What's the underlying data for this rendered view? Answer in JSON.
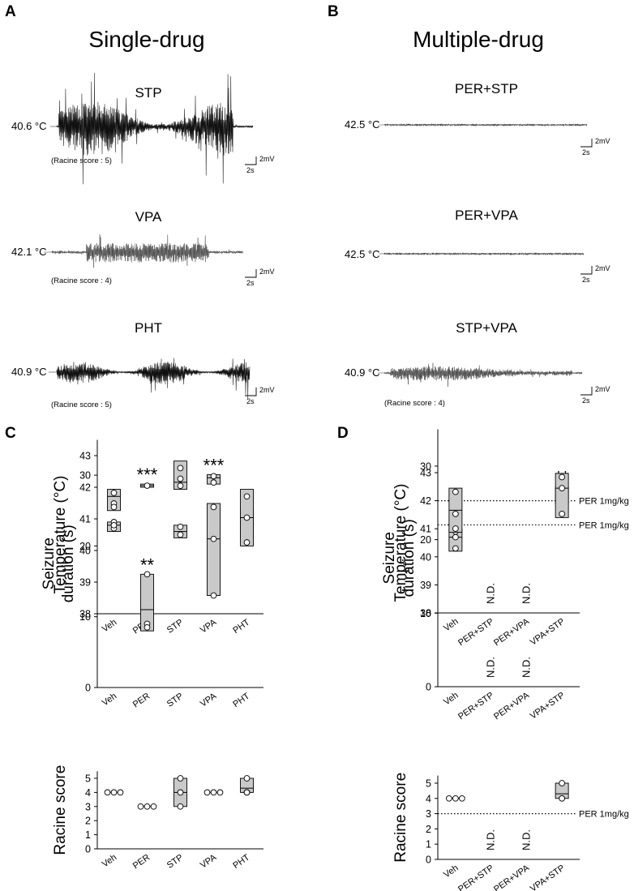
{
  "panels": {
    "A": {
      "letter": "A",
      "heading": "Single-drug",
      "traces": [
        {
          "label": "STP",
          "temp": "40.6 °C",
          "score": "(Racine score : 5)",
          "scale_time": "2s",
          "scale_amp": "2mV"
        },
        {
          "label": "VPA",
          "temp": "42.1 °C",
          "score": "(Racine score : 4)",
          "scale_time": "2s",
          "scale_amp": "2mV"
        },
        {
          "label": "PHT",
          "temp": "40.9 °C",
          "score": "(Racine score : 5)",
          "scale_time": "2s",
          "scale_amp": "2mV"
        }
      ]
    },
    "B": {
      "letter": "B",
      "heading": "Multiple-drug",
      "traces": [
        {
          "label": "PER+STP",
          "temp": "42.5 °C",
          "score": "",
          "scale_time": "2s",
          "scale_amp": "2mV"
        },
        {
          "label": "PER+VPA",
          "temp": "42.5 °C",
          "score": "",
          "scale_time": "2s",
          "scale_amp": "2mV"
        },
        {
          "label": "STP+VPA",
          "temp": "40.9 °C",
          "score": "(Racine score : 4)",
          "scale_time": "2s",
          "scale_amp": "2mV"
        }
      ]
    },
    "C": {
      "letter": "C"
    },
    "D": {
      "letter": "D"
    }
  },
  "chart_data": [
    {
      "id": "C-temp",
      "type": "box",
      "panel": "C",
      "ylabel": [
        "Temperature (°C)"
      ],
      "ylim": [
        38,
        43
      ],
      "yticks": [
        38,
        39,
        40,
        41,
        42,
        43
      ],
      "categories": [
        "Veh",
        "PER",
        "STP",
        "VPA",
        "PHT"
      ],
      "groups": [
        {
          "min": 40.6,
          "q1": 40.6,
          "median": 40.8,
          "q3": 40.9,
          "max": 40.9,
          "points": [
            40.9,
            40.7,
            40.8
          ],
          "sig": ""
        },
        {
          "min": 42.0,
          "q1": 42.0,
          "median": 42.05,
          "q3": 42.1,
          "max": 42.1,
          "points": [
            42.05
          ],
          "sig": "***"
        },
        {
          "min": 40.4,
          "q1": 40.4,
          "median": 40.6,
          "q3": 40.8,
          "max": 40.8,
          "points": [
            40.75,
            40.5
          ],
          "sig": ""
        },
        {
          "min": 42.1,
          "q1": 42.1,
          "median": 42.3,
          "q3": 42.4,
          "max": 42.4,
          "points": [
            42.35,
            42.15
          ],
          "sig": "***"
        },
        {
          "min": 40.4,
          "q1": 40.4,
          "median": 40.9,
          "q3": 41.3,
          "max": 41.3,
          "points": [
            41.2,
            40.9,
            40.5
          ],
          "sig": ""
        }
      ],
      "nd_label": "",
      "reference": null
    },
    {
      "id": "C-dur",
      "type": "box",
      "panel": "C",
      "ylabel": [
        "Seizure",
        "duration (s)"
      ],
      "ylim": [
        0,
        35
      ],
      "yticks": [
        0,
        10,
        20,
        30
      ],
      "categories": [
        "Veh",
        "PER",
        "STP",
        "VPA",
        "PHT"
      ],
      "groups": [
        {
          "min": 25,
          "q1": 25,
          "median": 27,
          "q3": 28,
          "max": 28,
          "points": [
            27.5,
            26,
            25.5
          ],
          "sig": ""
        },
        {
          "min": 8,
          "q1": 8,
          "median": 11,
          "q3": 16,
          "max": 16,
          "points": [
            16,
            9,
            8.5
          ],
          "sig": "**"
        },
        {
          "min": 28,
          "q1": 28,
          "median": 29,
          "q3": 32,
          "max": 32,
          "points": [
            31,
            29.5,
            28.5
          ],
          "sig": ""
        },
        {
          "min": 13,
          "q1": 13,
          "median": 21,
          "q3": 26,
          "max": 26,
          "points": [
            25.5,
            21,
            13
          ],
          "sig": ""
        },
        {
          "min": 20,
          "q1": 20,
          "median": 24,
          "q3": 28,
          "max": 28,
          "points": [
            27,
            24,
            20.5
          ],
          "sig": ""
        }
      ],
      "nd_label": "",
      "reference": null
    },
    {
      "id": "C-score",
      "type": "box",
      "panel": "C",
      "ylabel": [
        "Racine score"
      ],
      "ylim": [
        0,
        5.5
      ],
      "yticks": [
        0,
        1,
        2,
        3,
        4,
        5
      ],
      "categories": [
        "Veh",
        "PER",
        "STP",
        "VPA",
        "PHT"
      ],
      "groups": [
        {
          "min": 4,
          "q1": 4,
          "median": 4,
          "q3": 4,
          "max": 4,
          "points": [
            4,
            4,
            4
          ],
          "flat": true,
          "sig": ""
        },
        {
          "min": 3,
          "q1": 3,
          "median": 3,
          "q3": 3,
          "max": 3,
          "points": [
            3,
            3,
            3
          ],
          "flat": true,
          "sig": ""
        },
        {
          "min": 3,
          "q1": 3,
          "median": 4,
          "q3": 5,
          "max": 5,
          "points": [
            5,
            4,
            3
          ],
          "sig": ""
        },
        {
          "min": 4,
          "q1": 4,
          "median": 4,
          "q3": 4,
          "max": 4,
          "points": [
            4,
            4,
            4
          ],
          "flat": true,
          "sig": ""
        },
        {
          "min": 4,
          "q1": 4,
          "median": 4.3,
          "q3": 5,
          "max": 5,
          "points": [
            5,
            4,
            4,
            4
          ],
          "sig": ""
        }
      ],
      "nd_label": "",
      "reference": null
    },
    {
      "id": "D-temp",
      "type": "box",
      "panel": "D",
      "ylabel": [
        "Temperature (°C)"
      ],
      "ylim": [
        38,
        43
      ],
      "yticks": [
        38,
        39,
        40,
        41,
        42,
        43
      ],
      "categories": [
        "Veh",
        "PER+STP",
        "PER+VPA",
        "VPA+STP"
      ],
      "groups": [
        {
          "min": 40.2,
          "q1": 40.2,
          "median": 40.7,
          "q3": 41.0,
          "max": 41.0,
          "points": [
            40.9,
            40.7,
            40.3
          ],
          "sig": ""
        },
        {
          "nd": true
        },
        {
          "nd": true
        },
        {
          "min": 41.9,
          "q1": 41.9,
          "median": 42.2,
          "q3": 42.5,
          "max": 42.5,
          "points": [
            42.4,
            42.2,
            42.0
          ],
          "sig": "**"
        }
      ],
      "nd_label": "N.D.",
      "reference": {
        "value": 42,
        "label": "PER 1mg/kg"
      }
    },
    {
      "id": "D-dur",
      "type": "box",
      "panel": "D",
      "ylabel": [
        "Seizure",
        "duration (s)"
      ],
      "ylim": [
        0,
        35
      ],
      "yticks": [
        0,
        10,
        20,
        30
      ],
      "categories": [
        "Veh",
        "PER+STP",
        "PER+VPA",
        "VPA+STP"
      ],
      "groups": [
        {
          "min": 21,
          "q1": 21,
          "median": 24,
          "q3": 27,
          "max": 27,
          "points": [
            26.5,
            23.5,
            21.5
          ],
          "sig": ""
        },
        {
          "nd": true
        },
        {
          "nd": true
        },
        {
          "min": 23,
          "q1": 23,
          "median": 27,
          "q3": 29,
          "max": 29,
          "points": [
            28.5,
            27,
            23.5
          ],
          "sig": ""
        }
      ],
      "nd_label": "N.D.",
      "reference": {
        "value": 22,
        "label": "PER 1mg/kg"
      }
    },
    {
      "id": "D-score",
      "type": "box",
      "panel": "D",
      "ylabel": [
        "Racine score"
      ],
      "ylim": [
        0,
        5.5
      ],
      "yticks": [
        0,
        1,
        2,
        3,
        4,
        5
      ],
      "categories": [
        "Veh",
        "PER+STP",
        "PER+VPA",
        "VPA+STP"
      ],
      "groups": [
        {
          "min": 4,
          "q1": 4,
          "median": 4,
          "q3": 4,
          "max": 4,
          "points": [
            4,
            4,
            4
          ],
          "flat": true,
          "sig": ""
        },
        {
          "nd": true
        },
        {
          "nd": true
        },
        {
          "min": 4,
          "q1": 4,
          "median": 4.3,
          "q3": 5,
          "max": 5,
          "points": [
            5,
            4,
            4
          ],
          "sig": ""
        }
      ],
      "nd_label": "N.D.",
      "reference": {
        "value": 3,
        "label": "PER 1mg/kg"
      }
    }
  ]
}
